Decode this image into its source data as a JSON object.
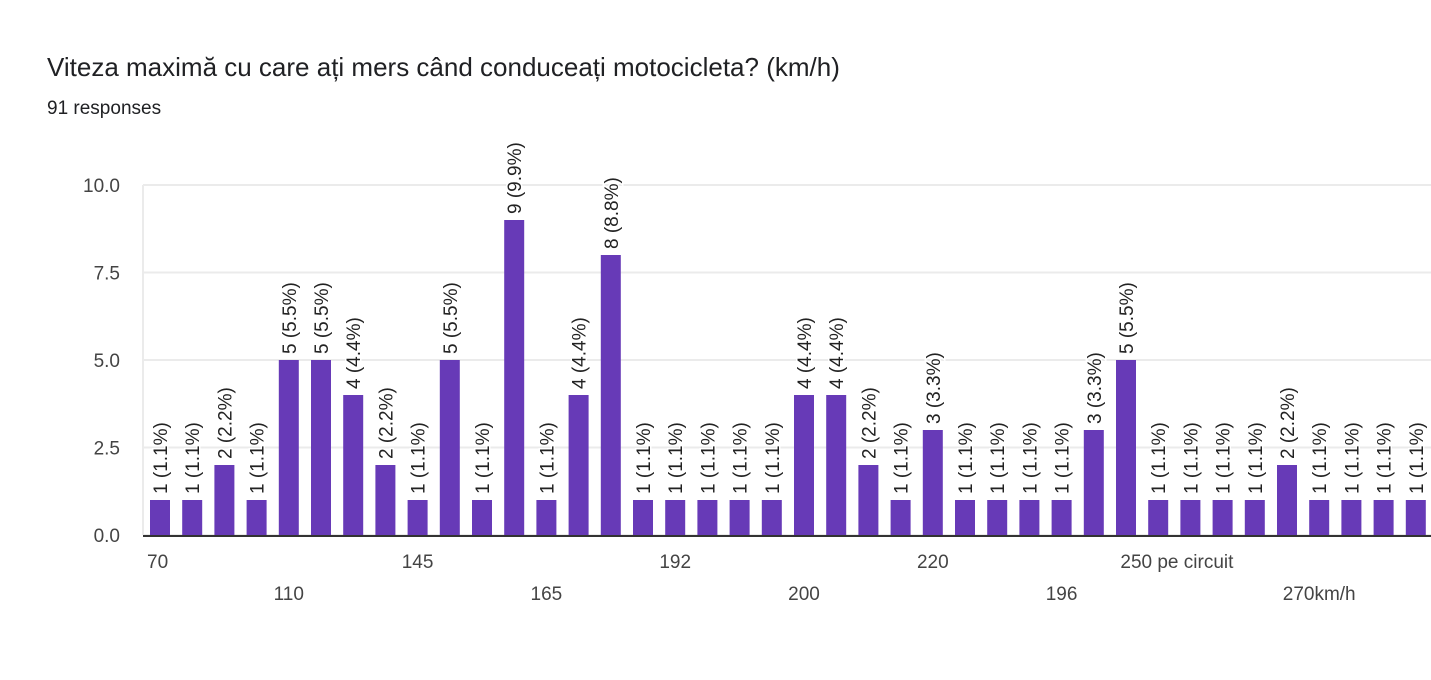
{
  "header": {
    "title": "Viteza maximă cu care ați mers când conduceați motocicleta? (km/h)",
    "responses": "91 responses"
  },
  "chart_data": {
    "type": "bar",
    "title": "Viteza maximă cu care ați mers când conduceați motocicleta? (km/h)",
    "xlabel": "",
    "ylabel": "",
    "ylim": [
      0,
      10
    ],
    "y_ticks": [
      "0.0",
      "2.5",
      "5.0",
      "7.5",
      "10.0"
    ],
    "grid": true,
    "bar_color": "#673ab7",
    "categories": [
      "70",
      "",
      "",
      "",
      "110",
      "",
      "",
      "",
      "145",
      "",
      "",
      "",
      "165",
      "",
      "",
      "",
      "192",
      "",
      "",
      "",
      "200",
      "",
      "",
      "",
      "220",
      "",
      "",
      "",
      "196",
      "",
      "",
      "",
      "250 pe circuit",
      "",
      "",
      "",
      "270km/h",
      "",
      "",
      ""
    ],
    "values": [
      1,
      1,
      2,
      1,
      5,
      5,
      4,
      2,
      1,
      5,
      1,
      9,
      1,
      4,
      8,
      1,
      1,
      1,
      1,
      1,
      4,
      4,
      2,
      1,
      3,
      1,
      1,
      1,
      1,
      3,
      5,
      1,
      1,
      1,
      1,
      2,
      1,
      1,
      1,
      1
    ],
    "data_labels": [
      "1 (1.1%)",
      "1 (1.1%)",
      "2 (2.2%)",
      "1 (1.1%)",
      "5 (5.5%)",
      "5 (5.5%)",
      "4 (4.4%)",
      "2 (2.2%)",
      "1 (1.1%)",
      "5 (5.5%)",
      "1 (1.1%)",
      "9 (9.9%)",
      "1 (1.1%)",
      "4 (4.4%)",
      "8 (8.8%)",
      "1 (1.1%)",
      "1 (1.1%)",
      "1 (1.1%)",
      "1 (1.1%)",
      "1 (1.1%)",
      "4 (4.4%)",
      "4 (4.4%)",
      "2 (2.2%)",
      "1 (1.1%)",
      "3 (3.3%)",
      "1 (1.1%)",
      "1 (1.1%)",
      "1 (1.1%)",
      "1 (1.1%)",
      "3 (3.3%)",
      "5 (5.5%)",
      "1 (1.1%)",
      "1 (1.1%)",
      "1 (1.1%)",
      "1 (1.1%)",
      "2 (2.2%)",
      "1 (1.1%)",
      "1 (1.1%)",
      "1 (1.1%)",
      "1 (1.1%)"
    ]
  }
}
